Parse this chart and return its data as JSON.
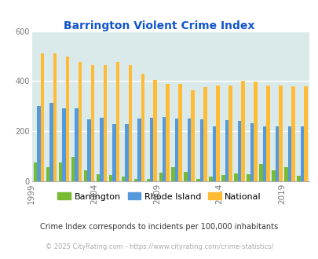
{
  "title": "Barrington Violent Crime Index",
  "years": [
    1999,
    2000,
    2001,
    2002,
    2003,
    2004,
    2005,
    2006,
    2007,
    2008,
    2009,
    2010,
    2011,
    2012,
    2013,
    2014,
    2015,
    2016,
    2017,
    2018,
    2019,
    2020
  ],
  "barrington": [
    75,
    55,
    75,
    97,
    45,
    28,
    25,
    20,
    10,
    8,
    35,
    55,
    38,
    10,
    20,
    25,
    30,
    28,
    68,
    45,
    55,
    22
  ],
  "rhode_island": [
    300,
    315,
    290,
    290,
    248,
    255,
    230,
    228,
    252,
    255,
    258,
    250,
    252,
    248,
    220,
    245,
    240,
    232,
    220,
    220,
    220,
    220
  ],
  "national": [
    510,
    510,
    500,
    475,
    465,
    465,
    475,
    465,
    430,
    405,
    390,
    390,
    365,
    375,
    382,
    382,
    400,
    397,
    383,
    383,
    380,
    380
  ],
  "bar_color_barrington": "#77bb33",
  "bar_color_rhode_island": "#5599dd",
  "bar_color_national": "#ffbb33",
  "bg_color": "#daeaea",
  "ylim": [
    0,
    600
  ],
  "yticks": [
    0,
    200,
    400,
    600
  ],
  "xlabel_ticks": [
    1999,
    2004,
    2009,
    2014,
    2019
  ],
  "legend_labels": [
    "Barrington",
    "Rhode Island",
    "National"
  ],
  "footnote1": "Crime Index corresponds to incidents per 100,000 inhabitants",
  "footnote2": "© 2025 CityRating.com - https://www.cityrating.com/crime-statistics/",
  "title_color": "#1155cc",
  "footnote1_color": "#333333",
  "footnote2_color": "#aaaaaa",
  "bar_width": 0.28
}
